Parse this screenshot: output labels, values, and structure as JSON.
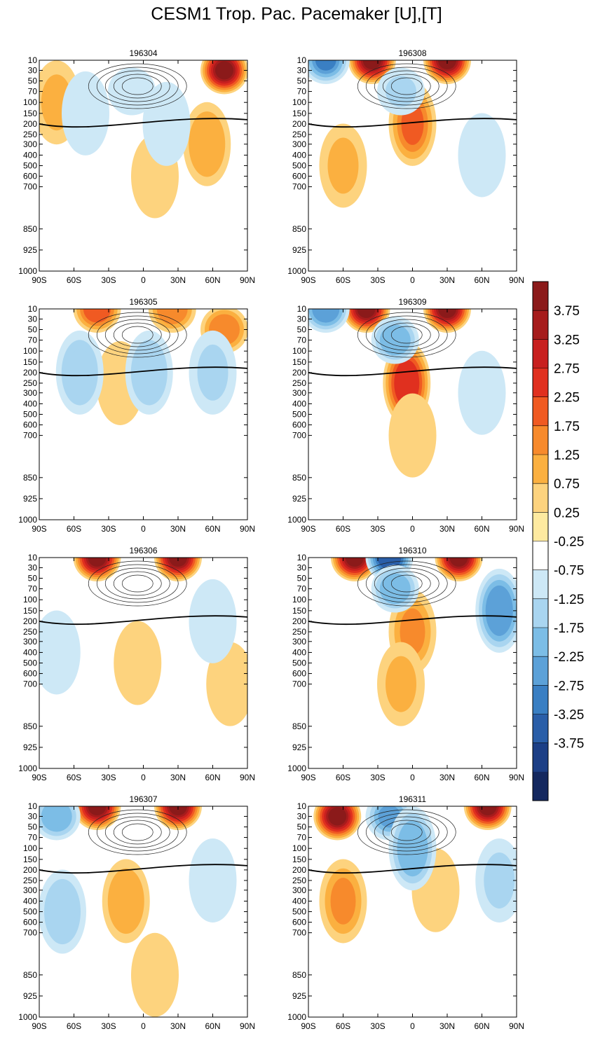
{
  "figure_title": "CESM1 Trop. Pac. Pacemaker [U],[T]",
  "chart_data": {
    "type": "heatmap",
    "title": "CESM1 Trop. Pac. Pacemaker [U],[T]",
    "xlabel": "",
    "ylabel": "",
    "x_ticks": [
      "90S",
      "60S",
      "30S",
      "0",
      "30N",
      "60N",
      "90N"
    ],
    "x_values": [
      -90,
      -60,
      -30,
      0,
      30,
      60,
      90
    ],
    "y_levels": [
      10,
      30,
      50,
      70,
      100,
      150,
      200,
      250,
      300,
      400,
      500,
      600,
      700,
      850,
      925,
      1000
    ],
    "y_ticks": [
      "10",
      "30",
      "50",
      "70",
      "100",
      "150",
      "200",
      "250",
      "300",
      "400",
      "500",
      "600",
      "700",
      "850",
      "925",
      "1000"
    ],
    "colorbar": {
      "labels": [
        "3.75",
        "3.25",
        "2.75",
        "2.25",
        "1.75",
        "1.25",
        "0.75",
        "0.25",
        "-0.25",
        "-0.75",
        "-1.25",
        "-1.75",
        "-2.25",
        "-2.75",
        "-3.25",
        "-3.75"
      ],
      "colors": [
        "#8b1a1a",
        "#a61c1c",
        "#c8201f",
        "#e0301f",
        "#f05a22",
        "#f78a2c",
        "#fbb040",
        "#fdd37e",
        "#feeaa0",
        "#ffffff",
        "#cde8f6",
        "#a9d5f0",
        "#7cbde6",
        "#5ca1d8",
        "#3a7fc3",
        "#2a5ea8",
        "#1c3f86",
        "#14285f"
      ]
    },
    "panels": [
      {
        "label": "196304",
        "column": 0,
        "row": 0,
        "warm": [
          {
            "lat": 70,
            "p": 30,
            "a": 3.9
          },
          {
            "lat": 55,
            "p": 300,
            "a": 1.0
          },
          {
            "lat": -75,
            "p": 100,
            "a": 0.9
          },
          {
            "lat": 10,
            "p": 600,
            "a": 0.5
          }
        ],
        "cool": [
          {
            "lat": -50,
            "p": 150,
            "a": -0.7
          },
          {
            "lat": 20,
            "p": 200,
            "a": -0.7
          },
          {
            "lat": -10,
            "p": 70,
            "a": -0.5
          }
        ]
      },
      {
        "label": "196305",
        "column": 0,
        "row": 1,
        "warm": [
          {
            "lat": -40,
            "p": 10,
            "a": 2.0
          },
          {
            "lat": 25,
            "p": 10,
            "a": 1.5
          },
          {
            "lat": 70,
            "p": 50,
            "a": 1.5
          },
          {
            "lat": -20,
            "p": 250,
            "a": 0.7
          }
        ],
        "cool": [
          {
            "lat": -55,
            "p": 200,
            "a": -1.2
          },
          {
            "lat": 5,
            "p": 200,
            "a": -1.2
          },
          {
            "lat": 60,
            "p": 200,
            "a": -0.8
          }
        ]
      },
      {
        "label": "196306",
        "column": 0,
        "row": 2,
        "warm": [
          {
            "lat": -40,
            "p": 10,
            "a": 3.9
          },
          {
            "lat": 30,
            "p": 10,
            "a": 3.9
          },
          {
            "lat": -5,
            "p": 500,
            "a": 0.6
          },
          {
            "lat": 75,
            "p": 700,
            "a": 0.5
          }
        ],
        "cool": [
          {
            "lat": -75,
            "p": 400,
            "a": -0.5
          },
          {
            "lat": 60,
            "p": 200,
            "a": -0.5
          }
        ]
      },
      {
        "label": "196307",
        "column": 0,
        "row": 3,
        "warm": [
          {
            "lat": -40,
            "p": 10,
            "a": 3.9
          },
          {
            "lat": 30,
            "p": 10,
            "a": 3.9
          },
          {
            "lat": -15,
            "p": 400,
            "a": 1.0
          },
          {
            "lat": 10,
            "p": 850,
            "a": 0.7
          }
        ],
        "cool": [
          {
            "lat": -75,
            "p": 30,
            "a": -1.6
          },
          {
            "lat": -70,
            "p": 500,
            "a": -1.2
          },
          {
            "lat": 60,
            "p": 250,
            "a": -0.7
          }
        ]
      },
      {
        "label": "196308",
        "column": 1,
        "row": 0,
        "warm": [
          {
            "lat": -35,
            "p": 10,
            "a": 3.9
          },
          {
            "lat": 30,
            "p": 10,
            "a": 3.9
          },
          {
            "lat": 0,
            "p": 200,
            "a": 1.8
          },
          {
            "lat": -60,
            "p": 500,
            "a": 0.8
          }
        ],
        "cool": [
          {
            "lat": -75,
            "p": 10,
            "a": -2.4
          },
          {
            "lat": -10,
            "p": 70,
            "a": -0.9
          },
          {
            "lat": 60,
            "p": 400,
            "a": -0.7
          }
        ]
      },
      {
        "label": "196309",
        "column": 1,
        "row": 1,
        "warm": [
          {
            "lat": -40,
            "p": 10,
            "a": 3.9
          },
          {
            "lat": 30,
            "p": 10,
            "a": 3.9
          },
          {
            "lat": -5,
            "p": 250,
            "a": 2.6
          },
          {
            "lat": 0,
            "p": 700,
            "a": 0.7
          }
        ],
        "cool": [
          {
            "lat": -75,
            "p": 10,
            "a": -2.0
          },
          {
            "lat": -15,
            "p": 70,
            "a": -1.5
          },
          {
            "lat": 60,
            "p": 300,
            "a": -0.7
          }
        ]
      },
      {
        "label": "196310",
        "column": 1,
        "row": 2,
        "warm": [
          {
            "lat": -50,
            "p": 10,
            "a": 3.9
          },
          {
            "lat": 40,
            "p": 10,
            "a": 3.9
          },
          {
            "lat": 0,
            "p": 250,
            "a": 1.4
          },
          {
            "lat": -10,
            "p": 700,
            "a": 0.9
          }
        ],
        "cool": [
          {
            "lat": -20,
            "p": 10,
            "a": -3.0
          },
          {
            "lat": 75,
            "p": 150,
            "a": -2.2
          },
          {
            "lat": -15,
            "p": 70,
            "a": -1.5
          }
        ]
      },
      {
        "label": "196311",
        "column": 1,
        "row": 3,
        "warm": [
          {
            "lat": -65,
            "p": 30,
            "a": 3.9
          },
          {
            "lat": 65,
            "p": 10,
            "a": 3.9
          },
          {
            "lat": -60,
            "p": 400,
            "a": 1.4
          },
          {
            "lat": 20,
            "p": 300,
            "a": 0.7
          }
        ],
        "cool": [
          {
            "lat": -20,
            "p": 30,
            "a": -1.8
          },
          {
            "lat": 0,
            "p": 100,
            "a": -1.7
          },
          {
            "lat": 75,
            "p": 250,
            "a": -0.8
          }
        ]
      }
    ]
  }
}
